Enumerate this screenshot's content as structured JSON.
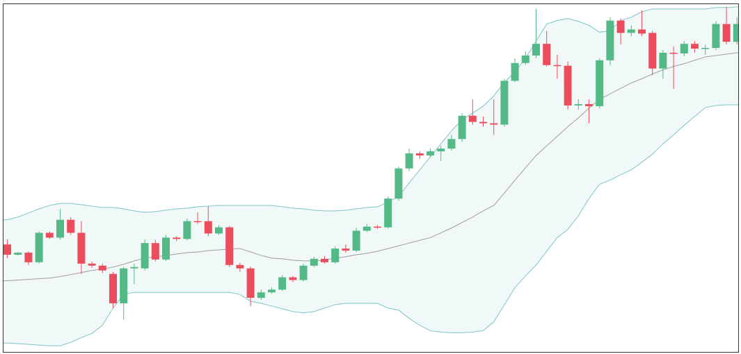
{
  "chart_data": {
    "type": "candlestick",
    "ylim": [
      0,
      510
    ],
    "up_color": "#53b987",
    "down_color": "#eb4d5c",
    "band_line_color": "#7fc4c8",
    "band_fill_color": "#f1f8f8",
    "middle_color": "#9e9e9e",
    "open": [
      158,
      143,
      146,
      132,
      175,
      168,
      194,
      175,
      130,
      127,
      115,
      72,
      123,
      123,
      160,
      136,
      168,
      166,
      192,
      192,
      174,
      183,
      128,
      123,
      80,
      88,
      92,
      110,
      106,
      127,
      137,
      132,
      152,
      149,
      178,
      184,
      183,
      225,
      269,
      291,
      288,
      294,
      298,
      312,
      346,
      337,
      335,
      333,
      397,
      423,
      434,
      451,
      420,
      419,
      361,
      363,
      360,
      427,
      485,
      467,
      472,
      467,
      415,
      438,
      437,
      451,
      444,
      445,
      480,
      454
    ],
    "high": [
      165,
      147,
      148,
      177,
      177,
      210,
      198,
      192,
      133,
      130,
      118,
      125,
      130,
      165,
      165,
      172,
      170,
      196,
      205,
      214,
      186,
      185,
      131,
      126,
      92,
      95,
      113,
      112,
      130,
      140,
      141,
      155,
      158,
      182,
      188,
      186,
      228,
      272,
      298,
      294,
      298,
      302,
      318,
      350,
      370,
      345,
      370,
      400,
      430,
      440,
      502,
      470,
      435,
      425,
      370,
      370,
      430,
      490,
      488,
      478,
      500,
      470,
      442,
      447,
      455,
      455,
      450,
      484,
      505,
      490
    ],
    "low": [
      138,
      142,
      128,
      130,
      166,
      165,
      172,
      115,
      124,
      116,
      65,
      48,
      100,
      120,
      133,
      134,
      163,
      164,
      188,
      170,
      172,
      125,
      118,
      68,
      77,
      86,
      90,
      103,
      104,
      125,
      130,
      130,
      146,
      147,
      176,
      181,
      181,
      222,
      265,
      283,
      285,
      280,
      295,
      308,
      333,
      330,
      318,
      330,
      395,
      420,
      430,
      418,
      400,
      355,
      355,
      335,
      357,
      420,
      450,
      462,
      462,
      405,
      400,
      385,
      433,
      438,
      435,
      442,
      450,
      450
    ],
    "close": [
      143,
      146,
      132,
      175,
      168,
      194,
      175,
      130,
      127,
      120,
      72,
      123,
      125,
      160,
      136,
      168,
      166,
      192,
      191,
      174,
      183,
      128,
      123,
      80,
      88,
      92,
      110,
      106,
      127,
      137,
      132,
      152,
      149,
      178,
      184,
      183,
      225,
      269,
      291,
      288,
      294,
      298,
      312,
      346,
      337,
      335,
      333,
      397,
      423,
      434,
      451,
      420,
      419,
      361,
      363,
      360,
      427,
      485,
      467,
      472,
      466,
      415,
      438,
      437,
      451,
      444,
      445,
      480,
      454,
      480
    ],
    "bands": {
      "upper": [
        194,
        198,
        204,
        210,
        215,
        218,
        218,
        216,
        214,
        212,
        212,
        210,
        207,
        205,
        206,
        208,
        210,
        211,
        213,
        214,
        215,
        215,
        215,
        215,
        215,
        215,
        213,
        211,
        210,
        208,
        207,
        207,
        208,
        210,
        212,
        213,
        220,
        228,
        248,
        267,
        286,
        305,
        324,
        340,
        350,
        360,
        375,
        395,
        410,
        430,
        455,
        480,
        485,
        488,
        484,
        478,
        468,
        470,
        485,
        490,
        498,
        502,
        502,
        502,
        502,
        502,
        502,
        504,
        504,
        505
      ],
      "middle": [
        105,
        106,
        107,
        108,
        109,
        111,
        114,
        117,
        120,
        122,
        125,
        129,
        134,
        138,
        140,
        142,
        144,
        146,
        147,
        149,
        150,
        151,
        152,
        147,
        142,
        138,
        137,
        135,
        134,
        134,
        135,
        138,
        140,
        143,
        145,
        148,
        152,
        156,
        160,
        164,
        168,
        175,
        182,
        190,
        198,
        207,
        215,
        233,
        252,
        270,
        288,
        302,
        316,
        330,
        343,
        357,
        370,
        378,
        386,
        394,
        400,
        407,
        413,
        418,
        422,
        427,
        432,
        434,
        436,
        438
      ],
      "lower": [
        14,
        13,
        12,
        11,
        10,
        10,
        15,
        22,
        28,
        40,
        65,
        85,
        88,
        88,
        88,
        88,
        88,
        88,
        88,
        88,
        88,
        88,
        85,
        75,
        72,
        68,
        64,
        60,
        58,
        60,
        65,
        70,
        72,
        72,
        72,
        72,
        65,
        62,
        50,
        40,
        32,
        30,
        29,
        29,
        30,
        32,
        45,
        70,
        95,
        112,
        128,
        148,
        168,
        180,
        200,
        225,
        246,
        252,
        260,
        267,
        278,
        290,
        305,
        318,
        332,
        345,
        358,
        361,
        362,
        362
      ]
    }
  }
}
